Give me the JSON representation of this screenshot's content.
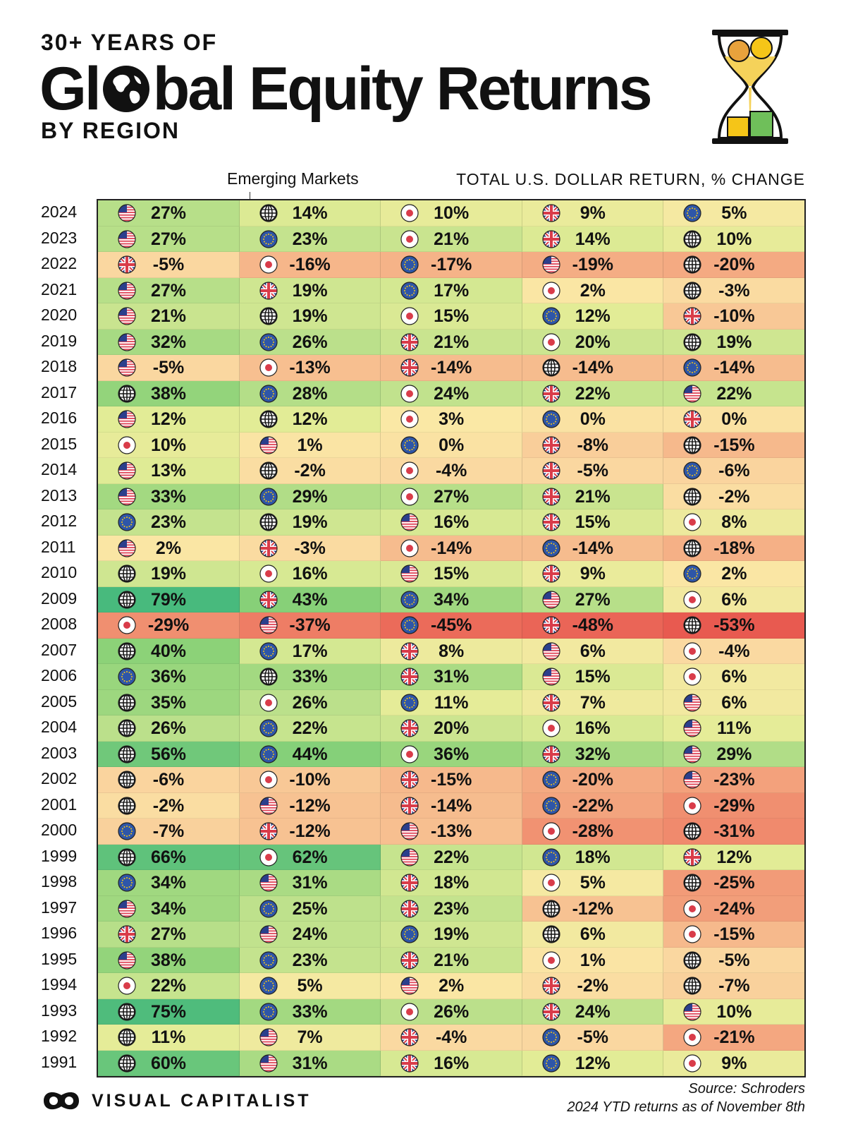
{
  "header": {
    "kicker": "30+ YEARS OF",
    "title_before": "Gl",
    "title_after": "bal Equity Returns",
    "subtitle": "BY REGION"
  },
  "labels": {
    "emerging_markets": "Emerging Markets",
    "units": "TOTAL U.S. DOLLAR RETURN, % CHANGE"
  },
  "footer": {
    "brand": "VISUAL CAPITALIST",
    "source": "Source: Schroders",
    "note": "2024 YTD returns as of November 8th"
  },
  "colors": {
    "us": "#e0485a",
    "us_blue": "#2b3f8c",
    "eu": "#2e56a8",
    "eu_star": "#f5c518",
    "uk_blue": "#2b3f8c",
    "uk_red": "#d93c4a",
    "jp_red": "#d93c4a"
  },
  "chart_data": {
    "type": "table",
    "regions": {
      "us": "United States",
      "em": "Emerging Markets",
      "jp": "Japan",
      "uk": "United Kingdom",
      "eu": "Europe"
    },
    "rows": [
      {
        "year": "2024",
        "cells": [
          [
            "us",
            27
          ],
          [
            "em",
            14
          ],
          [
            "jp",
            10
          ],
          [
            "uk",
            9
          ],
          [
            "eu",
            5
          ]
        ]
      },
      {
        "year": "2023",
        "cells": [
          [
            "us",
            27
          ],
          [
            "eu",
            23
          ],
          [
            "jp",
            21
          ],
          [
            "uk",
            14
          ],
          [
            "em",
            10
          ]
        ]
      },
      {
        "year": "2022",
        "cells": [
          [
            "uk",
            -5
          ],
          [
            "jp",
            -16
          ],
          [
            "eu",
            -17
          ],
          [
            "us",
            -19
          ],
          [
            "em",
            -20
          ]
        ]
      },
      {
        "year": "2021",
        "cells": [
          [
            "us",
            27
          ],
          [
            "uk",
            19
          ],
          [
            "eu",
            17
          ],
          [
            "jp",
            2
          ],
          [
            "em",
            -3
          ]
        ]
      },
      {
        "year": "2020",
        "cells": [
          [
            "us",
            21
          ],
          [
            "em",
            19
          ],
          [
            "jp",
            15
          ],
          [
            "eu",
            12
          ],
          [
            "uk",
            -10
          ]
        ]
      },
      {
        "year": "2019",
        "cells": [
          [
            "us",
            32
          ],
          [
            "eu",
            26
          ],
          [
            "uk",
            21
          ],
          [
            "jp",
            20
          ],
          [
            "em",
            19
          ]
        ]
      },
      {
        "year": "2018",
        "cells": [
          [
            "us",
            -5
          ],
          [
            "jp",
            -13
          ],
          [
            "uk",
            -14
          ],
          [
            "em",
            -14
          ],
          [
            "eu",
            -14
          ]
        ]
      },
      {
        "year": "2017",
        "cells": [
          [
            "em",
            38
          ],
          [
            "eu",
            28
          ],
          [
            "jp",
            24
          ],
          [
            "uk",
            22
          ],
          [
            "us",
            22
          ]
        ]
      },
      {
        "year": "2016",
        "cells": [
          [
            "us",
            12
          ],
          [
            "em",
            12
          ],
          [
            "jp",
            3
          ],
          [
            "eu",
            0
          ],
          [
            "uk",
            0
          ]
        ]
      },
      {
        "year": "2015",
        "cells": [
          [
            "jp",
            10
          ],
          [
            "us",
            1
          ],
          [
            "eu",
            0
          ],
          [
            "uk",
            -8
          ],
          [
            "em",
            -15
          ]
        ]
      },
      {
        "year": "2014",
        "cells": [
          [
            "us",
            13
          ],
          [
            "em",
            -2
          ],
          [
            "jp",
            -4
          ],
          [
            "uk",
            -5
          ],
          [
            "eu",
            -6
          ]
        ]
      },
      {
        "year": "2013",
        "cells": [
          [
            "us",
            33
          ],
          [
            "eu",
            29
          ],
          [
            "jp",
            27
          ],
          [
            "uk",
            21
          ],
          [
            "em",
            -2
          ]
        ]
      },
      {
        "year": "2012",
        "cells": [
          [
            "eu",
            23
          ],
          [
            "em",
            19
          ],
          [
            "us",
            16
          ],
          [
            "uk",
            15
          ],
          [
            "jp",
            8
          ]
        ]
      },
      {
        "year": "2011",
        "cells": [
          [
            "us",
            2
          ],
          [
            "uk",
            -3
          ],
          [
            "jp",
            -14
          ],
          [
            "eu",
            -14
          ],
          [
            "em",
            -18
          ]
        ]
      },
      {
        "year": "2010",
        "cells": [
          [
            "em",
            19
          ],
          [
            "jp",
            16
          ],
          [
            "us",
            15
          ],
          [
            "uk",
            9
          ],
          [
            "eu",
            2
          ]
        ]
      },
      {
        "year": "2009",
        "cells": [
          [
            "em",
            79
          ],
          [
            "uk",
            43
          ],
          [
            "eu",
            34
          ],
          [
            "us",
            27
          ],
          [
            "jp",
            6
          ]
        ]
      },
      {
        "year": "2008",
        "cells": [
          [
            "jp",
            -29
          ],
          [
            "us",
            -37
          ],
          [
            "eu",
            -45
          ],
          [
            "uk",
            -48
          ],
          [
            "em",
            -53
          ]
        ]
      },
      {
        "year": "2007",
        "cells": [
          [
            "em",
            40
          ],
          [
            "eu",
            17
          ],
          [
            "uk",
            8
          ],
          [
            "us",
            6
          ],
          [
            "jp",
            -4
          ]
        ]
      },
      {
        "year": "2006",
        "cells": [
          [
            "eu",
            36
          ],
          [
            "em",
            33
          ],
          [
            "uk",
            31
          ],
          [
            "us",
            15
          ],
          [
            "jp",
            6
          ]
        ]
      },
      {
        "year": "2005",
        "cells": [
          [
            "em",
            35
          ],
          [
            "jp",
            26
          ],
          [
            "eu",
            11
          ],
          [
            "uk",
            7
          ],
          [
            "us",
            6
          ]
        ]
      },
      {
        "year": "2004",
        "cells": [
          [
            "em",
            26
          ],
          [
            "eu",
            22
          ],
          [
            "uk",
            20
          ],
          [
            "jp",
            16
          ],
          [
            "us",
            11
          ]
        ]
      },
      {
        "year": "2003",
        "cells": [
          [
            "em",
            56
          ],
          [
            "eu",
            44
          ],
          [
            "jp",
            36
          ],
          [
            "uk",
            32
          ],
          [
            "us",
            29
          ]
        ]
      },
      {
        "year": "2002",
        "cells": [
          [
            "em",
            -6
          ],
          [
            "jp",
            -10
          ],
          [
            "uk",
            -15
          ],
          [
            "eu",
            -20
          ],
          [
            "us",
            -23
          ]
        ]
      },
      {
        "year": "2001",
        "cells": [
          [
            "em",
            -2
          ],
          [
            "us",
            -12
          ],
          [
            "uk",
            -14
          ],
          [
            "eu",
            -22
          ],
          [
            "jp",
            -29
          ]
        ]
      },
      {
        "year": "2000",
        "cells": [
          [
            "eu",
            -7
          ],
          [
            "uk",
            -12
          ],
          [
            "us",
            -13
          ],
          [
            "jp",
            -28
          ],
          [
            "em",
            -31
          ]
        ]
      },
      {
        "year": "1999",
        "cells": [
          [
            "em",
            66
          ],
          [
            "jp",
            62
          ],
          [
            "us",
            22
          ],
          [
            "eu",
            18
          ],
          [
            "uk",
            12
          ]
        ]
      },
      {
        "year": "1998",
        "cells": [
          [
            "eu",
            34
          ],
          [
            "us",
            31
          ],
          [
            "uk",
            18
          ],
          [
            "jp",
            5
          ],
          [
            "em",
            -25
          ]
        ]
      },
      {
        "year": "1997",
        "cells": [
          [
            "us",
            34
          ],
          [
            "eu",
            25
          ],
          [
            "uk",
            23
          ],
          [
            "em",
            -12
          ],
          [
            "jp",
            -24
          ]
        ]
      },
      {
        "year": "1996",
        "cells": [
          [
            "uk",
            27
          ],
          [
            "us",
            24
          ],
          [
            "eu",
            19
          ],
          [
            "em",
            6
          ],
          [
            "jp",
            -15
          ]
        ]
      },
      {
        "year": "1995",
        "cells": [
          [
            "us",
            38
          ],
          [
            "eu",
            23
          ],
          [
            "uk",
            21
          ],
          [
            "jp",
            1
          ],
          [
            "em",
            -5
          ]
        ]
      },
      {
        "year": "1994",
        "cells": [
          [
            "jp",
            22
          ],
          [
            "eu",
            5
          ],
          [
            "us",
            2
          ],
          [
            "uk",
            -2
          ],
          [
            "em",
            -7
          ]
        ]
      },
      {
        "year": "1993",
        "cells": [
          [
            "em",
            75
          ],
          [
            "eu",
            33
          ],
          [
            "jp",
            26
          ],
          [
            "uk",
            24
          ],
          [
            "us",
            10
          ]
        ]
      },
      {
        "year": "1992",
        "cells": [
          [
            "em",
            11
          ],
          [
            "us",
            7
          ],
          [
            "uk",
            -4
          ],
          [
            "eu",
            -5
          ],
          [
            "jp",
            -21
          ]
        ]
      },
      {
        "year": "1991",
        "cells": [
          [
            "em",
            60
          ],
          [
            "us",
            31
          ],
          [
            "uk",
            16
          ],
          [
            "eu",
            12
          ],
          [
            "jp",
            9
          ]
        ]
      }
    ]
  }
}
